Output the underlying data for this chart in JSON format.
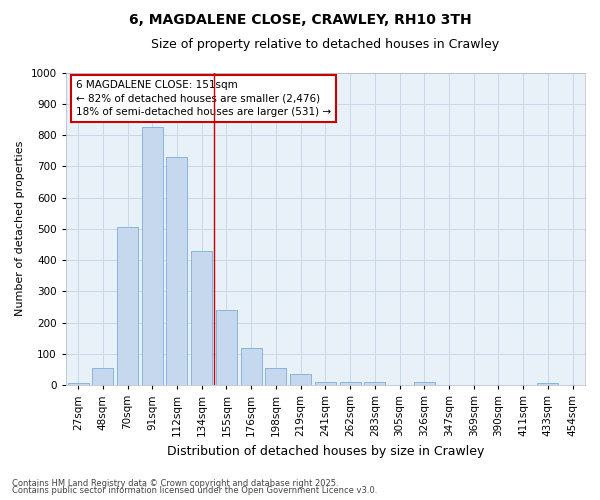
{
  "title1": "6, MAGDALENE CLOSE, CRAWLEY, RH10 3TH",
  "title2": "Size of property relative to detached houses in Crawley",
  "xlabel": "Distribution of detached houses by size in Crawley",
  "ylabel": "Number of detached properties",
  "categories": [
    "27sqm",
    "48sqm",
    "70sqm",
    "91sqm",
    "112sqm",
    "134sqm",
    "155sqm",
    "176sqm",
    "198sqm",
    "219sqm",
    "241sqm",
    "262sqm",
    "283sqm",
    "305sqm",
    "326sqm",
    "347sqm",
    "369sqm",
    "390sqm",
    "411sqm",
    "433sqm",
    "454sqm"
  ],
  "values": [
    5,
    55,
    505,
    825,
    730,
    430,
    240,
    120,
    55,
    35,
    10,
    10,
    10,
    0,
    10,
    0,
    0,
    0,
    0,
    5,
    0
  ],
  "bar_color": "#c5d8ee",
  "bar_edge_color": "#7aaddb",
  "grid_color": "#c8d8ea",
  "bg_color": "#e8f0f8",
  "vline_x_index": 6,
  "vline_color": "#cc0000",
  "ann_line1": "6 MAGDALENE CLOSE: 151sqm",
  "ann_line2": "← 82% of detached houses are smaller (2,476)",
  "ann_line3": "18% of semi-detached houses are larger (531) →",
  "annotation_box_color": "#cc0000",
  "footer1": "Contains HM Land Registry data © Crown copyright and database right 2025.",
  "footer2": "Contains public sector information licensed under the Open Government Licence v3.0.",
  "ylim": [
    0,
    1000
  ],
  "yticks": [
    0,
    100,
    200,
    300,
    400,
    500,
    600,
    700,
    800,
    900,
    1000
  ],
  "title1_fontsize": 10,
  "title2_fontsize": 9,
  "ylabel_fontsize": 8,
  "xlabel_fontsize": 9,
  "tick_fontsize": 7.5,
  "ann_fontsize": 7.5,
  "footer_fontsize": 6
}
